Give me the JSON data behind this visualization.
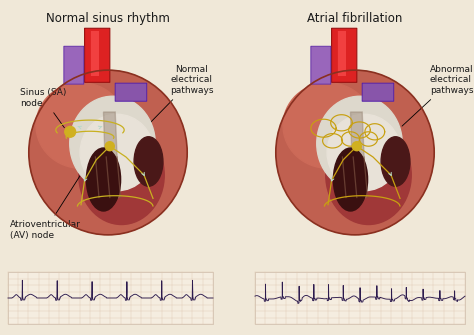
{
  "title_left": "Normal sinus rhythm",
  "title_right": "Atrial fibrillation",
  "label_sa": "Sinus (SA)\nnode",
  "label_av": "Atrioventricular\n(AV) node",
  "label_normal_path": "Normal\nelectrical\npathways",
  "label_abnormal_path": "Abnormal\nelectrical\npathways",
  "bg_color": "#f0e6d3",
  "ecg_color": "#2d1b4e",
  "grid_color": "#ddc8b0",
  "pathway_color_normal": "#c8b020",
  "pathway_color_afib": "#c8a010",
  "arrow_color": "#b8d8c8",
  "text_color": "#1a1a1a",
  "title_fontsize": 8.5,
  "label_fontsize": 6.5,
  "fig_bg": "#f0e8d8",
  "heart_bg": "#c8705a",
  "heart_right_atrium": "#d4826e",
  "heart_left_ventricle": "#a03830",
  "aorta_red": "#cc2222",
  "vein_purple": "#8844aa",
  "septum_white": "#e8e0d8",
  "vent_dark": "#5a1818",
  "ecg_bg": "#f5ede0"
}
